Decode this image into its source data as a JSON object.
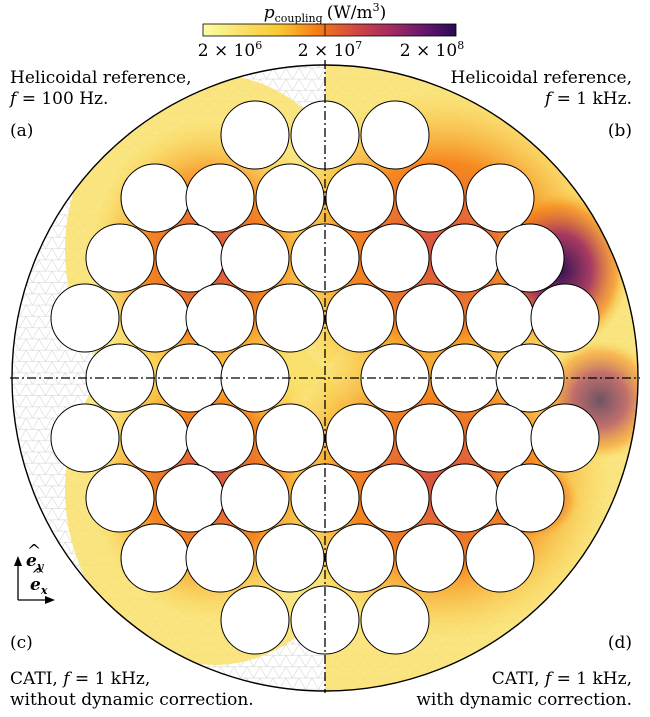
{
  "colorbar": {
    "symbol": "p",
    "subscript": "coupling",
    "unit": "(W/m",
    "unit_exp": "3",
    "unit_close": ")",
    "ticks": [
      {
        "base": "2 × 10",
        "exp": "6"
      },
      {
        "base": "2 × 10",
        "exp": "7"
      },
      {
        "base": "2 × 10",
        "exp": "8"
      }
    ],
    "scale": "log",
    "colormap": [
      "#fcfea4",
      "#f9c932",
      "#f57d15",
      "#d44842",
      "#9f2a63",
      "#65156e",
      "#280b54",
      "#000004"
    ]
  },
  "panels": {
    "a": {
      "line1": "Helicoidal reference,",
      "var": "f",
      "value": " = 100 Hz.",
      "tag": "(a)"
    },
    "b": {
      "line1": "Helicoidal reference,",
      "var": "f",
      "value": " = 1 kHz.",
      "tag": "(b)"
    },
    "c": {
      "tag": "(c)",
      "prefix": "CATI, ",
      "var": "f",
      "value": " = 1 kHz,",
      "line2": "without dynamic correction."
    },
    "d": {
      "tag": "(d)",
      "prefix": "CATI, ",
      "var": "f",
      "value": " = 1 kHz,",
      "line2": "with dynamic correction."
    }
  },
  "axes": {
    "y_label": "e",
    "y_sub": "y",
    "x_label": "e",
    "x_sub": "x"
  },
  "colors": {
    "mesh": "#cfcfcf",
    "outline": "#000000",
    "hole_fill": "#ffffff"
  }
}
